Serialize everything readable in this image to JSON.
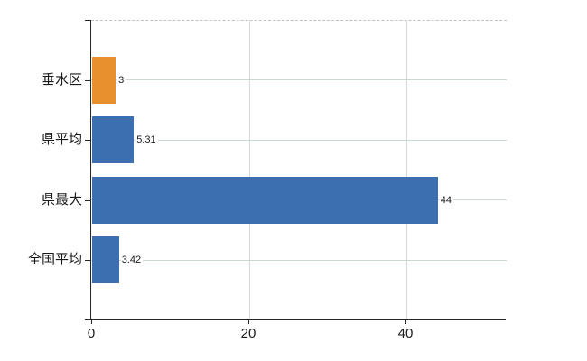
{
  "chart_data": {
    "type": "bar",
    "orientation": "horizontal",
    "title": "",
    "xlabel": "",
    "ylabel": "",
    "categories": [
      "垂水区",
      "県平均",
      "県最大",
      "全国平均"
    ],
    "values": [
      3,
      5.31,
      44,
      3.42
    ],
    "value_labels": [
      "3",
      "5.31",
      "44",
      "3.42"
    ],
    "bar_colors": [
      "#e88f2e",
      "#3c6fb0",
      "#3c6fb0",
      "#3c6fb0"
    ],
    "highlight_color": "#e88f2e",
    "series_color": "#3c6fb0",
    "x_ticks": [
      0,
      20,
      40
    ],
    "x_tick_labels": [
      "0",
      "20",
      "40"
    ],
    "xlim": [
      0,
      52.8
    ],
    "grid": true,
    "legend": "none"
  },
  "colors": {
    "axis": "#262626",
    "horizontal_grid": "#ccd8cc",
    "vertical_grid": "#d9d9d9",
    "top_border_dashed": "#c2c2c2",
    "background": "#ffffff",
    "text": "#1a1a1a"
  }
}
